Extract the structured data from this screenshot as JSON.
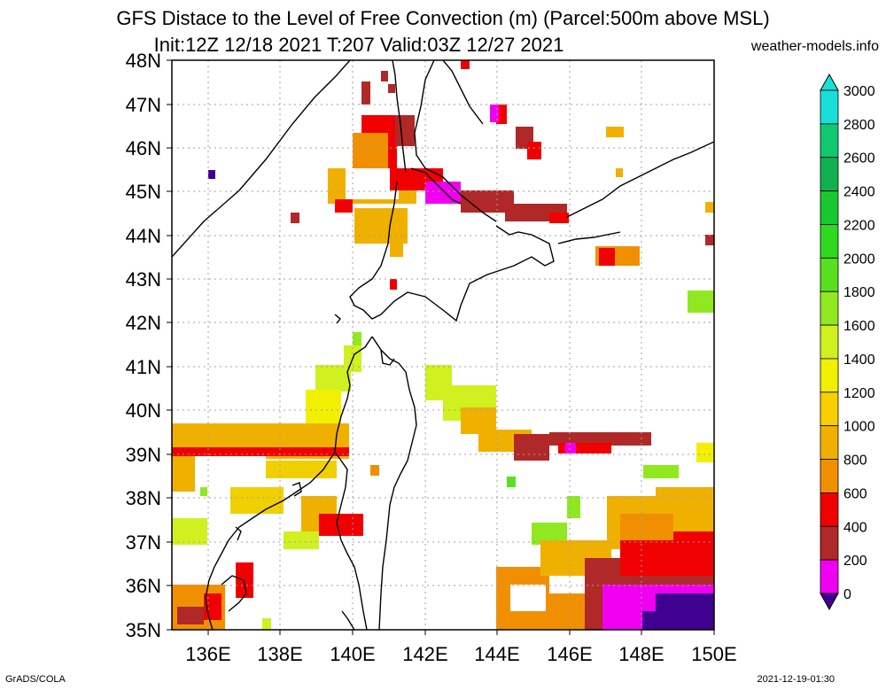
{
  "header": {
    "title_line1": "GFS Distace to the Level of Free Convection (m) (Parcel:500m above MSL)",
    "title_line2": "Init:12Z 12/18 2021 T:207 Valid:03Z 12/27 2021",
    "site": "weather-models.info"
  },
  "footer": {
    "left": "GrADS/COLA",
    "right": "2021-12-19-01:30"
  },
  "map": {
    "lat_labels": [
      "48N",
      "47N",
      "46N",
      "45N",
      "44N",
      "43N",
      "42N",
      "41N",
      "40N",
      "39N",
      "38N",
      "37N",
      "36N",
      "35N"
    ],
    "lon_labels": [
      "136E",
      "138E",
      "140E",
      "142E",
      "144E",
      "146E",
      "148E",
      "150E"
    ]
  },
  "colorbar": {
    "labels": [
      "3000",
      "2800",
      "2600",
      "2400",
      "2200",
      "2000",
      "1800",
      "1600",
      "1400",
      "1200",
      "1000",
      "800",
      "600",
      "400",
      "200",
      "0"
    ],
    "colors": [
      "#18e0d8",
      "#10c870",
      "#10b050",
      "#18c830",
      "#30d820",
      "#58e020",
      "#90e820",
      "#d0f020",
      "#f0f000",
      "#f8d000",
      "#f0b000",
      "#f09000",
      "#f00000",
      "#b02828",
      "#f000f0",
      "#400090"
    ]
  }
}
